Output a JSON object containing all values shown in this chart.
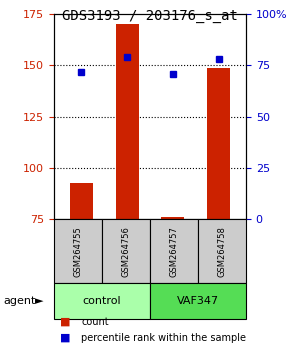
{
  "title": "GDS3193 / 203176_s_at",
  "samples": [
    "GSM264755",
    "GSM264756",
    "GSM264757",
    "GSM264758"
  ],
  "bar_values": [
    93,
    170,
    76,
    149
  ],
  "dot_values": [
    72,
    79,
    71,
    78
  ],
  "dot_percentile": [
    146,
    153,
    144,
    151
  ],
  "ylim_left": [
    75,
    175
  ],
  "ylim_right": [
    0,
    100
  ],
  "yticks_left": [
    75,
    100,
    125,
    150,
    175
  ],
  "yticks_right": [
    0,
    25,
    50,
    75,
    100
  ],
  "ytick_labels_right": [
    "0",
    "25",
    "50",
    "75",
    "100%"
  ],
  "bar_color": "#cc2200",
  "dot_color": "#0000cc",
  "bar_bottom": 75,
  "groups": [
    {
      "label": "control",
      "cols": [
        0,
        1
      ],
      "color": "#aaffaa"
    },
    {
      "label": "VAF347",
      "cols": [
        2,
        3
      ],
      "color": "#55dd55"
    }
  ],
  "group_row_label": "agent",
  "legend_items": [
    {
      "color": "#cc2200",
      "label": "count"
    },
    {
      "color": "#0000cc",
      "label": "percentile rank within the sample"
    }
  ],
  "grid_color": "#000000",
  "sample_box_color": "#cccccc",
  "xlabel": "",
  "bg_color": "#ffffff"
}
